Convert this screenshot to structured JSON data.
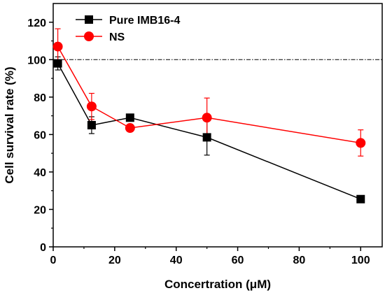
{
  "chart_data": {
    "type": "line",
    "xlabel": "Concertration (μM)",
    "ylabel": "Cell survival rate (%)",
    "xlim": [
      0,
      107
    ],
    "ylim": [
      0,
      130
    ],
    "xticks": [
      0,
      20,
      40,
      60,
      80,
      100
    ],
    "yticks": [
      0,
      20,
      40,
      60,
      80,
      100,
      120
    ],
    "reference_line": {
      "y": 100,
      "style": "dash-dot",
      "color": "#000000"
    },
    "legend_position": "top-left",
    "series": [
      {
        "name": "Pure IMB16-4",
        "color": "#000000",
        "marker": "square",
        "x": [
          1.5,
          12.5,
          25,
          50,
          100
        ],
        "y": [
          98,
          65,
          69,
          58.5,
          25.5
        ],
        "err": [
          3.5,
          4.5,
          0,
          9.5,
          0
        ]
      },
      {
        "name": "NS",
        "color": "#ff0000",
        "marker": "circle",
        "x": [
          1.5,
          12.5,
          25,
          50,
          100
        ],
        "y": [
          107,
          75,
          63.5,
          69,
          55.5
        ],
        "err": [
          9.5,
          7,
          0,
          10.5,
          7
        ]
      }
    ]
  }
}
